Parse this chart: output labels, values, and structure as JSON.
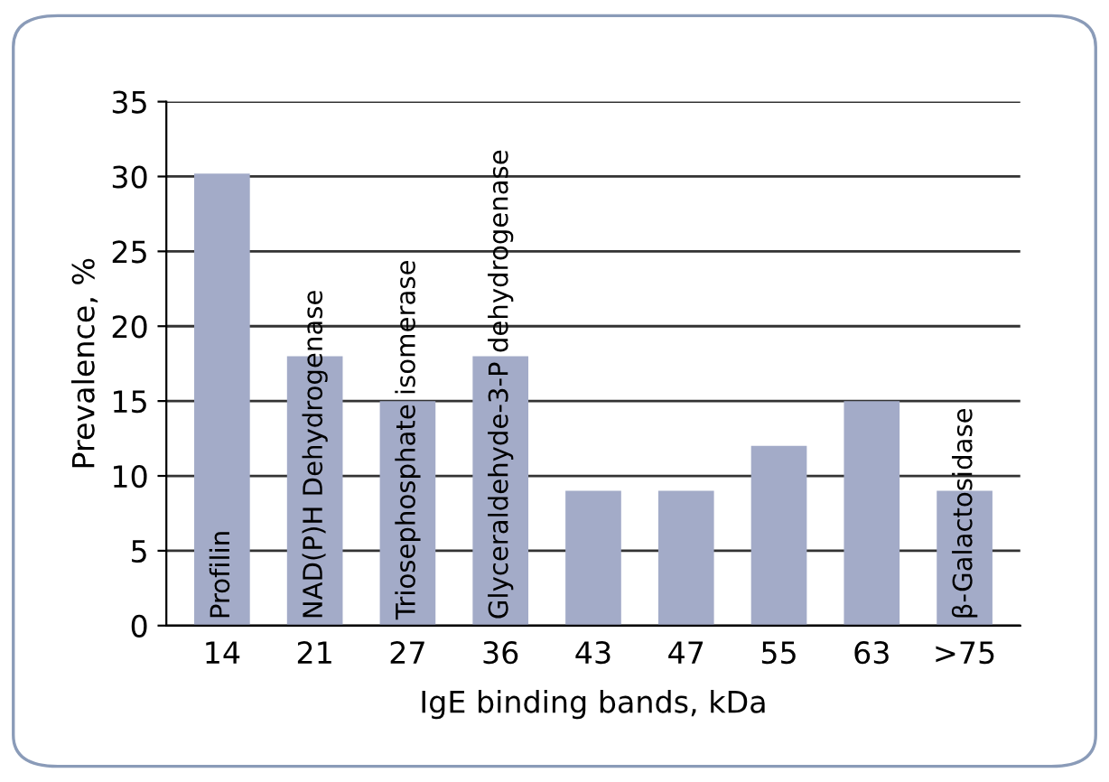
{
  "chart_data": {
    "type": "bar",
    "xlabel": "IgE binding bands, kDa",
    "ylabel": "Prevalence, %",
    "categories": [
      "14",
      "21",
      "27",
      "36",
      "43",
      "47",
      "55",
      "63",
      ">75"
    ],
    "values": [
      30.2,
      18,
      15,
      18,
      9,
      9,
      12,
      15,
      9
    ],
    "color": "#a3abc8",
    "ylim": [
      0,
      35
    ],
    "yticks": [
      0,
      5,
      10,
      15,
      20,
      25,
      30,
      35
    ],
    "grid": "y",
    "annotations": [
      {
        "text": "Profilin",
        "x": "14",
        "y": 0
      },
      {
        "text": "NAD(P)H Dehydrogenase",
        "x": "21",
        "y": 0
      },
      {
        "text": "Triosephosphate isomerase",
        "x": "27",
        "y": 0
      },
      {
        "text": "Glyceraldehyde-3-P dehydrogenase",
        "x": "36",
        "y": 0
      },
      {
        "text": "β-Galactosidase",
        "x": ">75",
        "y": 0
      }
    ]
  }
}
